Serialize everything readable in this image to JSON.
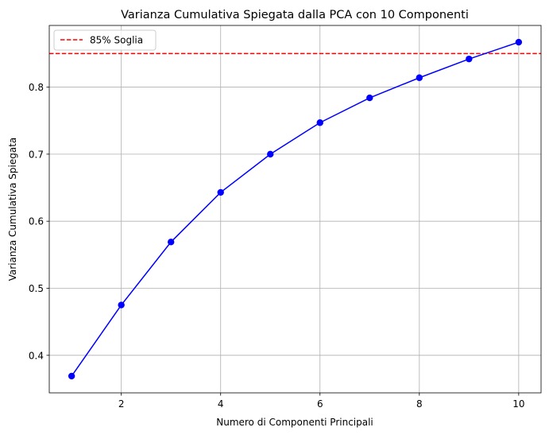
{
  "chart_data": {
    "type": "line",
    "title": "Varianza Cumulativa Spiegata dalla PCA con 10 Componenti",
    "xlabel": "Numero di Componenti Principali",
    "ylabel": "Varianza Cumulativa Spiegata",
    "x": [
      1,
      2,
      3,
      4,
      5,
      6,
      7,
      8,
      9,
      10
    ],
    "series": [
      {
        "values": [
          0.369,
          0.475,
          0.569,
          0.643,
          0.7,
          0.747,
          0.784,
          0.814,
          0.842,
          0.867
        ],
        "color": "#0000ff",
        "marker": "circle"
      }
    ],
    "reference_line": {
      "y": 0.85,
      "label": "85% Soglia",
      "color": "#ff0000",
      "style": "dashed"
    },
    "xlim": [
      0.55,
      10.45
    ],
    "ylim": [
      0.344,
      0.892
    ],
    "xticks": [
      2,
      4,
      6,
      8,
      10
    ],
    "xtick_labels": [
      "2",
      "4",
      "6",
      "8",
      "10"
    ],
    "yticks": [
      0.4,
      0.5,
      0.6,
      0.7,
      0.8
    ],
    "ytick_labels": [
      "0.4",
      "0.5",
      "0.6",
      "0.7",
      "0.8"
    ],
    "grid": true,
    "legend_position": "top-left"
  }
}
